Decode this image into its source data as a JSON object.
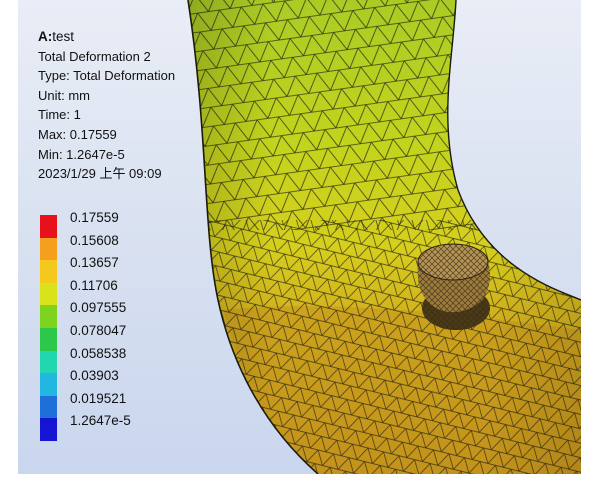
{
  "info": {
    "system_prefix": "A:",
    "system_name": "test",
    "result_name": "Total Deformation 2",
    "type": "Type: Total Deformation",
    "unit": "Unit: mm",
    "time": "Time: 1",
    "max": "Max: 0.17559",
    "min": "Min: 1.2647e-5",
    "timestamp": "2023/1/29 上午 09:09"
  },
  "legend": {
    "labels": [
      "0.17559",
      "0.15608",
      "0.13657",
      "0.11706",
      "0.097555",
      "0.078047",
      "0.058538",
      "0.03903",
      "0.019521",
      "1.2647e-5"
    ],
    "colors": [
      "#e8101a",
      "#f5a01c",
      "#f5c81d",
      "#d9e31b",
      "#7ed31e",
      "#2cc84a",
      "#22d6b0",
      "#22b7e0",
      "#1f6fd8",
      "#1414d2"
    ]
  },
  "model": {
    "pipe_color_upper": "#b8d21c",
    "pipe_color_mid": "#cfc81e",
    "pipe_color_lower": "#c89d1b",
    "mesh_color": "#1c1c10",
    "nozzle_color": "#a07f3e"
  }
}
